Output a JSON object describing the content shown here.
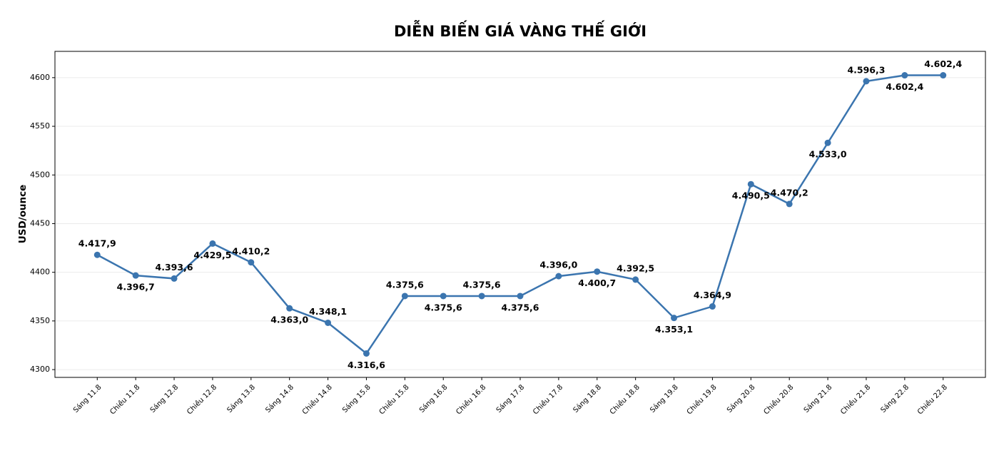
{
  "chart_data": {
    "type": "line",
    "title": "DIỄN BIẾN GIÁ VÀNG THẾ GIỚI",
    "y_label": "USD/ounce",
    "categories": [
      "Sáng 11.8",
      "Chiều 11.8",
      "Sáng 12.8",
      "Chiều 12.8",
      "Sáng 13.8",
      "Sáng 14.8",
      "Chiều 14.8",
      "Sáng 15.8",
      "Chiều 15.8",
      "Sáng 16.8",
      "Chiều 16.8",
      "Sáng 17.8",
      "Chiều 17.8",
      "Sáng 18.8",
      "Chiều 18.8",
      "Sáng 19.8",
      "Chiều 19.8",
      "Sáng 20.8",
      "Chiều 20.8",
      "Sáng 21.8",
      "Chiều 21.8",
      "Sáng 22.8",
      "Chiều 22.8"
    ],
    "values": [
      4417.9,
      4396.7,
      4393.6,
      4429.5,
      4410.2,
      4363.0,
      4348.1,
      4316.6,
      4375.6,
      4375.6,
      4375.6,
      4375.6,
      4396.0,
      4400.7,
      4392.5,
      4353.1,
      4364.9,
      4490.5,
      4470.2,
      4533.0,
      4596.3,
      4602.4,
      4602.4
    ],
    "value_labels": [
      "4.417,9",
      "4.396,7",
      "4.393,6",
      "4.429,5",
      "4.410,2",
      "4.363,0",
      "4.348,1",
      "4.316,6",
      "4.375,6",
      "4.375,6",
      "4.375,6",
      "4.375,6",
      "4.396,0",
      "4.400,7",
      "4.392,5",
      "4.353,1",
      "4.364,9",
      "4.490,5",
      "4.470,2",
      "4.533,0",
      "4.596,3",
      "4.602,4",
      "4.602,4"
    ],
    "color": "#3b75af",
    "ylim": [
      4292,
      4627
    ],
    "yticks": [
      4300,
      4350,
      4400,
      4450,
      4500,
      4550,
      4600
    ],
    "grid": true
  }
}
